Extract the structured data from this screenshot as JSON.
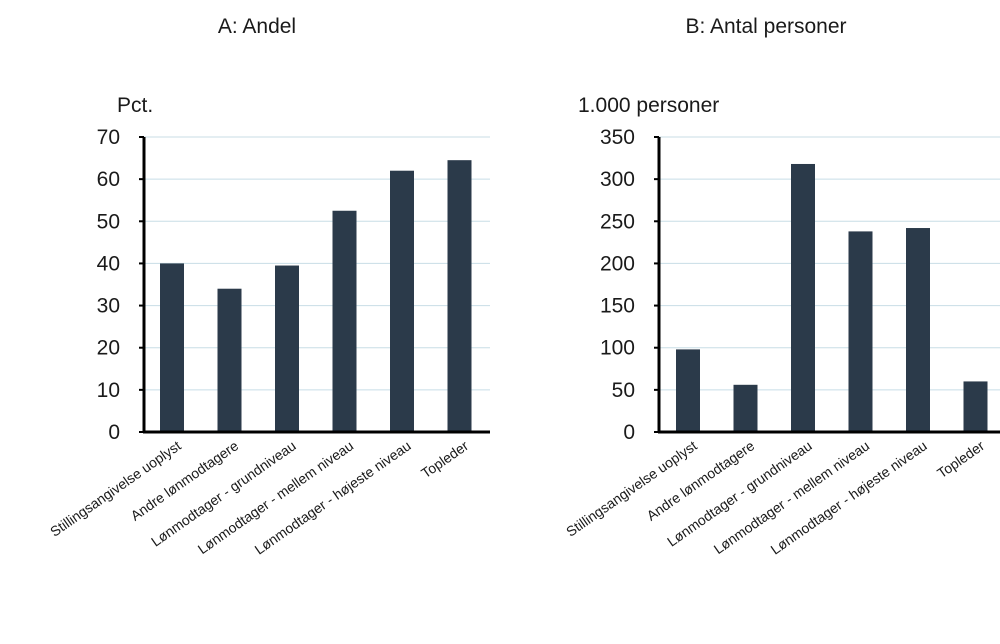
{
  "chart_data": [
    {
      "type": "bar",
      "title": "A: Andel",
      "unit_label": "Pct.",
      "categories": [
        "Stillingsangivelse uoplyst",
        "Andre lønmodtagere",
        "Lønmodtager - grundniveau",
        "Lønmodtager - mellem niveau",
        "Lønmodtager - højeste niveau",
        "Topleder"
      ],
      "values": [
        40,
        34,
        39.5,
        52.5,
        62,
        64.5
      ],
      "yticks": [
        "0",
        "10",
        "20",
        "30",
        "40",
        "50",
        "60",
        "70"
      ],
      "ylim": [
        0,
        70
      ],
      "grid": true,
      "bar_color": "#2b3a4a"
    },
    {
      "type": "bar",
      "title": "B: Antal personer",
      "unit_label": "1.000 personer",
      "categories": [
        "Stillingsangivelse uoplyst",
        "Andre lønmodtagere",
        "Lønmodtager - grundniveau",
        "Lønmodtager - mellem niveau",
        "Lønmodtager - højeste niveau",
        "Topleder"
      ],
      "values": [
        98,
        56,
        318,
        238,
        242,
        60
      ],
      "yticks": [
        "0",
        "50",
        "100",
        "150",
        "200",
        "250",
        "300",
        "350"
      ],
      "ylim": [
        0,
        350
      ],
      "grid": true,
      "bar_color": "#2b3a4a"
    }
  ]
}
